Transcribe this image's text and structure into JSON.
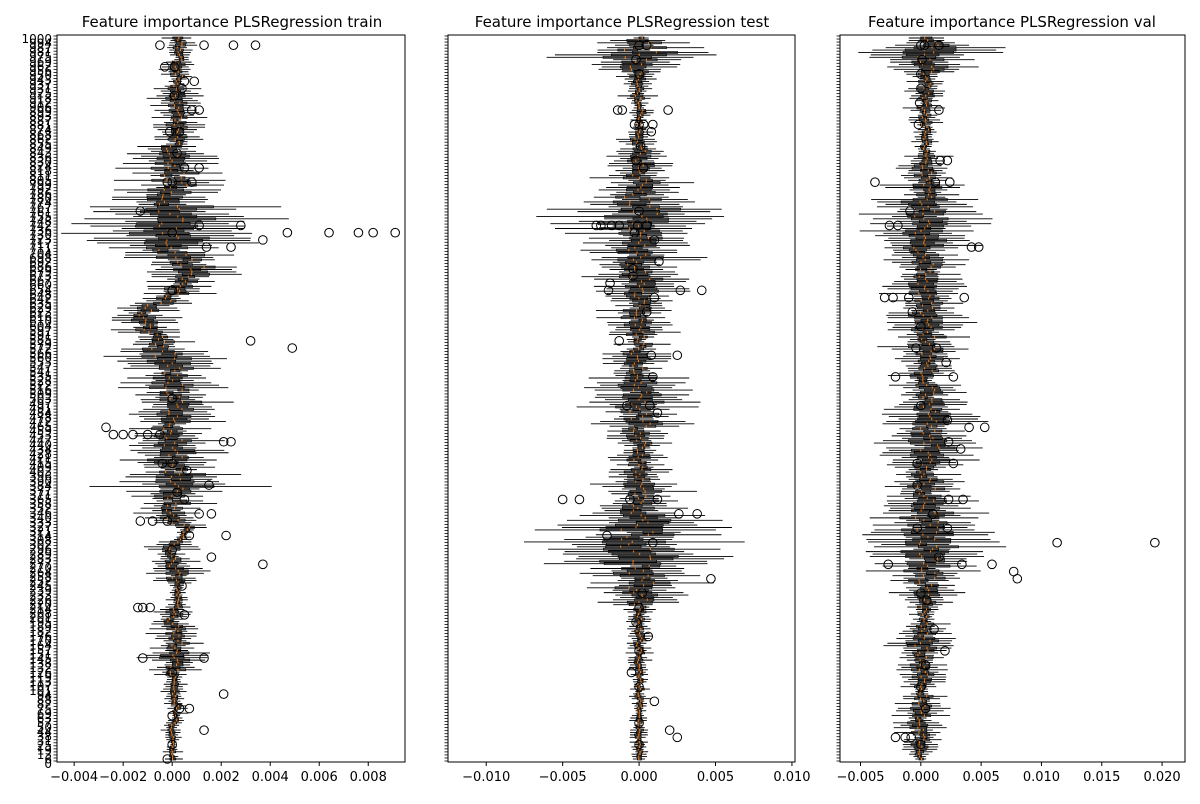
{
  "figure": {
    "suptitle": ""
  },
  "chart_data": [
    {
      "type": "box",
      "orientation": "horizontal",
      "title": "Feature importance PLSRegression train",
      "xlabel": "",
      "ylabel": "",
      "xlim": [
        -0.0047,
        0.0095
      ],
      "xticks": [
        -0.004,
        -0.002,
        0.0,
        0.002,
        0.004,
        0.006,
        0.008
      ],
      "xtick_labels": [
        "−0.004",
        "−0.002",
        "0.000",
        "0.002",
        "0.004",
        "0.006",
        "0.008"
      ],
      "y_tick_labels_visible": true,
      "y_tick_labels_note": "dense overlapping feature index labels (~1000 features)",
      "grid": false,
      "legend": "none",
      "median_color": "#ff7f0e",
      "feature_count": 1000,
      "box_count_rendered": 300,
      "features": {
        "center_seg": [
          [
            0,
            0.0003
          ],
          [
            0.16,
            0.0001
          ],
          [
            0.27,
            0.0
          ],
          [
            0.29,
            -0.0003
          ],
          [
            0.32,
            0.0009
          ],
          [
            0.36,
            -0.0001
          ],
          [
            0.38,
            -0.0012
          ],
          [
            0.46,
            0.0
          ],
          [
            0.51,
            0.0002
          ],
          [
            0.54,
            0.0
          ],
          [
            0.62,
            0.0001
          ],
          [
            0.67,
            0.0
          ],
          [
            0.68,
            0.0007
          ],
          [
            0.71,
            0.0
          ],
          [
            0.78,
            0.0003
          ],
          [
            0.81,
            0.0
          ],
          [
            0.85,
            0.0003
          ],
          [
            0.89,
            0.0
          ],
          [
            0.93,
            0.0002
          ],
          [
            0.96,
            0.0
          ],
          [
            1.0,
            0.0
          ]
        ],
        "spread_seg": [
          [
            0,
            0.0004
          ],
          [
            0.13,
            0.0006
          ],
          [
            0.2,
            0.0012
          ],
          [
            0.25,
            0.0022
          ],
          [
            0.3,
            0.0018
          ],
          [
            0.34,
            0.0008
          ],
          [
            0.4,
            0.0007
          ],
          [
            0.44,
            0.0011
          ],
          [
            0.5,
            0.0012
          ],
          [
            0.56,
            0.0009
          ],
          [
            0.62,
            0.0018
          ],
          [
            0.64,
            0.0011
          ],
          [
            0.69,
            0.0003
          ],
          [
            0.73,
            0.0009
          ],
          [
            0.77,
            0.0003
          ],
          [
            0.86,
            0.0009
          ],
          [
            0.89,
            0.0003
          ],
          [
            1.0,
            0.0002
          ]
        ],
        "outliers": [
          [
            0.01,
            -0.0005
          ],
          [
            0.01,
            0.0013
          ],
          [
            0.01,
            0.0025
          ],
          [
            0.01,
            0.0034
          ],
          [
            0.04,
            -0.0003
          ],
          [
            0.04,
            0.0001
          ],
          [
            0.06,
            0.0005
          ],
          [
            0.06,
            0.0009
          ],
          [
            0.07,
            0.0004
          ],
          [
            0.08,
            0.0001
          ],
          [
            0.1,
            0.0008
          ],
          [
            0.1,
            0.0011
          ],
          [
            0.13,
            -0.0001
          ],
          [
            0.13,
            0.0003
          ],
          [
            0.16,
            0.0002
          ],
          [
            0.18,
            0.0005
          ],
          [
            0.18,
            0.0011
          ],
          [
            0.2,
            -0.0002
          ],
          [
            0.2,
            0.0
          ],
          [
            0.2,
            0.0008
          ],
          [
            0.24,
            -0.0013
          ],
          [
            0.26,
            0.0011
          ],
          [
            0.26,
            0.0028
          ],
          [
            0.27,
            0.0
          ],
          [
            0.27,
            0.0047
          ],
          [
            0.27,
            0.0064
          ],
          [
            0.27,
            0.0082
          ],
          [
            0.27,
            0.0091
          ],
          [
            0.27,
            0.0076
          ],
          [
            0.28,
            0.0037
          ],
          [
            0.29,
            0.0014
          ],
          [
            0.29,
            0.0024
          ],
          [
            0.35,
            0.0
          ],
          [
            0.35,
            0.0
          ],
          [
            0.42,
            0.0032
          ],
          [
            0.43,
            0.0049
          ],
          [
            0.5,
            0.0
          ],
          [
            0.54,
            -0.0027
          ],
          [
            0.55,
            -0.0024
          ],
          [
            0.55,
            -0.002
          ],
          [
            0.55,
            -0.0016
          ],
          [
            0.55,
            -0.001
          ],
          [
            0.55,
            -0.0005
          ],
          [
            0.56,
            0.0021
          ],
          [
            0.56,
            0.0024
          ],
          [
            0.59,
            -0.0004
          ],
          [
            0.59,
            0.0
          ],
          [
            0.6,
            0.0006
          ],
          [
            0.62,
            0.0015
          ],
          [
            0.63,
            0.0002
          ],
          [
            0.64,
            0.0005
          ],
          [
            0.66,
            0.0011
          ],
          [
            0.66,
            0.0016
          ],
          [
            0.67,
            -0.0013
          ],
          [
            0.67,
            -0.0008
          ],
          [
            0.67,
            -0.0002
          ],
          [
            0.69,
            0.0007
          ],
          [
            0.69,
            0.0022
          ],
          [
            0.71,
            0.0
          ],
          [
            0.72,
            0.0016
          ],
          [
            0.73,
            0.0037
          ],
          [
            0.76,
            0.0004
          ],
          [
            0.79,
            -0.0014
          ],
          [
            0.79,
            -0.0012
          ],
          [
            0.79,
            -0.0009
          ],
          [
            0.8,
            0.0005
          ],
          [
            0.86,
            -0.0012
          ],
          [
            0.86,
            0.0013
          ],
          [
            0.88,
            0.0
          ],
          [
            0.91,
            0.0021
          ],
          [
            0.93,
            0.0003
          ],
          [
            0.93,
            0.0007
          ],
          [
            0.94,
            0.0
          ],
          [
            0.96,
            0.0013
          ],
          [
            0.98,
            0.0
          ],
          [
            1.0,
            -0.0002
          ]
        ]
      }
    },
    {
      "type": "box",
      "orientation": "horizontal",
      "title": "Feature importance PLSRegression test",
      "xlabel": "",
      "ylabel": "",
      "xlim": [
        -0.0125,
        0.0102
      ],
      "xticks": [
        -0.01,
        -0.005,
        0.0,
        0.005,
        0.01
      ],
      "xtick_labels": [
        "−0.010",
        "−0.005",
        "0.000",
        "0.005",
        "0.010"
      ],
      "y_tick_labels_visible": false,
      "grid": false,
      "legend": "none",
      "median_color": "#ff7f0e",
      "feature_count": 1000,
      "box_count_rendered": 300,
      "features": {
        "center_seg": [
          [
            0,
            0.0
          ],
          [
            1.0,
            0.0
          ]
        ],
        "spread_seg": [
          [
            0,
            0.0008
          ],
          [
            0.02,
            0.0035
          ],
          [
            0.05,
            0.0008
          ],
          [
            0.13,
            0.0004
          ],
          [
            0.2,
            0.0018
          ],
          [
            0.25,
            0.0035
          ],
          [
            0.28,
            0.0022
          ],
          [
            0.35,
            0.0017
          ],
          [
            0.42,
            0.001
          ],
          [
            0.52,
            0.0022
          ],
          [
            0.56,
            0.001
          ],
          [
            0.63,
            0.0017
          ],
          [
            0.7,
            0.0038
          ],
          [
            0.76,
            0.0025
          ],
          [
            0.8,
            0.0005
          ],
          [
            0.88,
            0.0004
          ],
          [
            1.0,
            0.0003
          ]
        ],
        "outliers": [
          [
            0.01,
            0.0
          ],
          [
            0.01,
            0.0005
          ],
          [
            0.03,
            -0.0002
          ],
          [
            0.05,
            0.0
          ],
          [
            0.1,
            -0.0014
          ],
          [
            0.1,
            -0.0011
          ],
          [
            0.1,
            0.0019
          ],
          [
            0.12,
            -0.0003
          ],
          [
            0.12,
            0.0
          ],
          [
            0.12,
            0.0003
          ],
          [
            0.12,
            0.0009
          ],
          [
            0.13,
            0.0008
          ],
          [
            0.15,
            0.0001
          ],
          [
            0.17,
            -0.0002
          ],
          [
            0.18,
            0.0003
          ],
          [
            0.24,
            0.0
          ],
          [
            0.26,
            -0.0028
          ],
          [
            0.26,
            -0.0025
          ],
          [
            0.26,
            -0.0018
          ],
          [
            0.26,
            -0.0013
          ],
          [
            0.26,
            -0.0001
          ],
          [
            0.26,
            0.0005
          ],
          [
            0.27,
            -0.0003
          ],
          [
            0.28,
            0.001
          ],
          [
            0.31,
            0.0013
          ],
          [
            0.32,
            -0.0004
          ],
          [
            0.33,
            -0.0004
          ],
          [
            0.34,
            -0.0019
          ],
          [
            0.35,
            -0.002
          ],
          [
            0.35,
            0.0027
          ],
          [
            0.35,
            0.0041
          ],
          [
            0.36,
            0.001
          ],
          [
            0.38,
            0.0005
          ],
          [
            0.42,
            -0.0013
          ],
          [
            0.44,
            0.0008
          ],
          [
            0.44,
            0.0025
          ],
          [
            0.47,
            0.0009
          ],
          [
            0.51,
            -0.0008
          ],
          [
            0.51,
            0.0007
          ],
          [
            0.52,
            0.0012
          ],
          [
            0.64,
            -0.005
          ],
          [
            0.64,
            -0.0039
          ],
          [
            0.64,
            -0.0006
          ],
          [
            0.64,
            0.0012
          ],
          [
            0.66,
            0.0026
          ],
          [
            0.66,
            0.0038
          ],
          [
            0.69,
            -0.0021
          ],
          [
            0.7,
            0.0009
          ],
          [
            0.75,
            0.0047
          ],
          [
            0.77,
            0.0002
          ],
          [
            0.79,
            0.0
          ],
          [
            0.81,
            -0.0002
          ],
          [
            0.83,
            0.0006
          ],
          [
            0.85,
            0.0
          ],
          [
            0.88,
            -0.0005
          ],
          [
            0.9,
            0.0
          ],
          [
            0.92,
            0.001
          ],
          [
            0.95,
            0.0
          ],
          [
            0.96,
            0.002
          ],
          [
            0.97,
            0.0025
          ],
          [
            0.98,
            0.0
          ]
        ]
      }
    },
    {
      "type": "box",
      "orientation": "horizontal",
      "title": "Feature importance PLSRegression val",
      "xlabel": "",
      "ylabel": "",
      "xlim": [
        -0.0067,
        0.0219
      ],
      "xticks": [
        -0.005,
        0.0,
        0.005,
        0.01,
        0.015,
        0.02
      ],
      "xtick_labels": [
        "−0.005",
        "0.000",
        "0.005",
        "0.010",
        "0.015",
        "0.020"
      ],
      "y_tick_labels_visible": false,
      "grid": false,
      "legend": "none",
      "median_color": "#ff7f0e",
      "feature_count": 1000,
      "box_count_rendered": 300,
      "features": {
        "center_seg": [
          [
            0,
            0.0005
          ],
          [
            0.2,
            0.0003
          ],
          [
            0.3,
            0.0003
          ],
          [
            0.5,
            0.0006
          ],
          [
            0.58,
            0.0009
          ],
          [
            0.6,
            0.0004
          ],
          [
            0.72,
            0.0006
          ],
          [
            0.8,
            0.0003
          ],
          [
            1.0,
            0.0
          ]
        ],
        "spread_seg": [
          [
            0,
            0.0012
          ],
          [
            0.02,
            0.0045
          ],
          [
            0.05,
            0.001
          ],
          [
            0.15,
            0.0008
          ],
          [
            0.24,
            0.0025
          ],
          [
            0.3,
            0.0022
          ],
          [
            0.4,
            0.0018
          ],
          [
            0.5,
            0.0015
          ],
          [
            0.55,
            0.003
          ],
          [
            0.6,
            0.0015
          ],
          [
            0.7,
            0.0035
          ],
          [
            0.75,
            0.0024
          ],
          [
            0.8,
            0.0006
          ],
          [
            0.84,
            0.0018
          ],
          [
            0.9,
            0.0008
          ],
          [
            0.95,
            0.0015
          ],
          [
            1.0,
            0.0007
          ]
        ],
        "outliers": [
          [
            0.01,
            0.0
          ],
          [
            0.01,
            0.0003
          ],
          [
            0.01,
            0.0015
          ],
          [
            0.03,
            0.0001
          ],
          [
            0.05,
            0.0
          ],
          [
            0.07,
            0.0
          ],
          [
            0.09,
            -0.0001
          ],
          [
            0.1,
            0.0015
          ],
          [
            0.12,
            -0.0002
          ],
          [
            0.17,
            0.0016
          ],
          [
            0.17,
            0.0022
          ],
          [
            0.2,
            -0.0038
          ],
          [
            0.2,
            0.0012
          ],
          [
            0.2,
            0.0024
          ],
          [
            0.24,
            -0.0009
          ],
          [
            0.26,
            -0.0026
          ],
          [
            0.26,
            -0.0019
          ],
          [
            0.29,
            0.0042
          ],
          [
            0.29,
            0.0048
          ],
          [
            0.36,
            -0.003
          ],
          [
            0.36,
            -0.0023
          ],
          [
            0.36,
            -0.001
          ],
          [
            0.36,
            0.0036
          ],
          [
            0.38,
            -0.0007
          ],
          [
            0.4,
            0.0
          ],
          [
            0.43,
            -0.0004
          ],
          [
            0.43,
            0.0013
          ],
          [
            0.45,
            0.0021
          ],
          [
            0.47,
            -0.0021
          ],
          [
            0.47,
            0.0027
          ],
          [
            0.51,
            0.0
          ],
          [
            0.53,
            0.0022
          ],
          [
            0.54,
            0.004
          ],
          [
            0.54,
            0.0053
          ],
          [
            0.56,
            0.0023
          ],
          [
            0.57,
            0.0033
          ],
          [
            0.59,
            -0.0003
          ],
          [
            0.59,
            0.0027
          ],
          [
            0.62,
            -0.0003
          ],
          [
            0.64,
            0.0023
          ],
          [
            0.64,
            0.0035
          ],
          [
            0.66,
            0.001
          ],
          [
            0.68,
            -0.0003
          ],
          [
            0.68,
            0.0022
          ],
          [
            0.7,
            0.0113
          ],
          [
            0.7,
            0.0194
          ],
          [
            0.72,
            0.0015
          ],
          [
            0.73,
            -0.0027
          ],
          [
            0.73,
            0.0034
          ],
          [
            0.73,
            0.0059
          ],
          [
            0.74,
            0.0077
          ],
          [
            0.75,
            0.008
          ],
          [
            0.77,
            0.0
          ],
          [
            0.78,
            0.0005
          ],
          [
            0.82,
            0.0011
          ],
          [
            0.85,
            0.002
          ],
          [
            0.87,
            0.0004
          ],
          [
            0.9,
            0.0
          ],
          [
            0.93,
            0.0004
          ],
          [
            0.97,
            -0.0021
          ],
          [
            0.97,
            -0.0013
          ],
          [
            0.97,
            -0.0008
          ],
          [
            0.98,
            0.0
          ]
        ]
      }
    }
  ]
}
